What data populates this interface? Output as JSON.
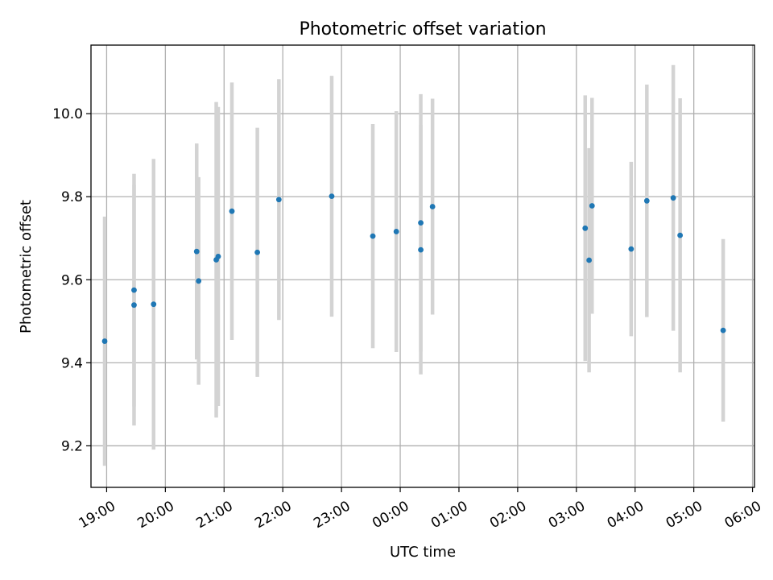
{
  "chart_data": {
    "type": "scatter",
    "title": "Photometric offset variation",
    "xlabel": "UTC time",
    "ylabel": "Photometric offset",
    "x_axis": "time",
    "xlim": [
      "18:44",
      "06:02"
    ],
    "ylim": [
      9.1,
      10.165
    ],
    "grid": true,
    "xticks": [
      "19:00",
      "20:00",
      "21:00",
      "22:00",
      "23:00",
      "00:00",
      "01:00",
      "02:00",
      "03:00",
      "04:00",
      "05:00",
      "06:00"
    ],
    "yticks": [
      9.2,
      9.4,
      9.6,
      9.8,
      10.0
    ],
    "ytick_labels": [
      "9.2",
      "9.4",
      "9.6",
      "9.8",
      "10.0"
    ],
    "colors": {
      "points": "#1f77b4",
      "errorbars": "#d3d3d3",
      "grid": "#b0b0b0"
    },
    "points": [
      {
        "x": "18:58",
        "y": 9.452,
        "yerr": 0.3
      },
      {
        "x": "19:28",
        "y": 9.575,
        "yerr": 0.28
      },
      {
        "x": "19:28",
        "y": 9.539,
        "yerr": 0.29
      },
      {
        "x": "19:48",
        "y": 9.541,
        "yerr": 0.35
      },
      {
        "x": "20:32",
        "y": 9.668,
        "yerr": 0.26
      },
      {
        "x": "20:34",
        "y": 9.597,
        "yerr": 0.25
      },
      {
        "x": "20:52",
        "y": 9.648,
        "yerr": 0.38
      },
      {
        "x": "20:54",
        "y": 9.656,
        "yerr": 0.36
      },
      {
        "x": "21:08",
        "y": 9.765,
        "yerr": 0.31
      },
      {
        "x": "21:34",
        "y": 9.666,
        "yerr": 0.3
      },
      {
        "x": "21:56",
        "y": 9.793,
        "yerr": 0.29
      },
      {
        "x": "22:50",
        "y": 9.801,
        "yerr": 0.29
      },
      {
        "x": "23:32",
        "y": 9.705,
        "yerr": 0.27
      },
      {
        "x": "23:56",
        "y": 9.716,
        "yerr": 0.29
      },
      {
        "x": "00:21",
        "y": 9.737,
        "yerr": 0.31
      },
      {
        "x": "00:21",
        "y": 9.672,
        "yerr": 0.3
      },
      {
        "x": "00:33",
        "y": 9.776,
        "yerr": 0.26
      },
      {
        "x": "03:09",
        "y": 9.724,
        "yerr": 0.32
      },
      {
        "x": "03:13",
        "y": 9.647,
        "yerr": 0.27
      },
      {
        "x": "03:16",
        "y": 9.778,
        "yerr": 0.26
      },
      {
        "x": "03:56",
        "y": 9.674,
        "yerr": 0.21
      },
      {
        "x": "04:12",
        "y": 9.79,
        "yerr": 0.28
      },
      {
        "x": "04:39",
        "y": 9.797,
        "yerr": 0.32
      },
      {
        "x": "04:46",
        "y": 9.707,
        "yerr": 0.33
      },
      {
        "x": "05:30",
        "y": 9.478,
        "yerr": 0.22
      }
    ]
  }
}
